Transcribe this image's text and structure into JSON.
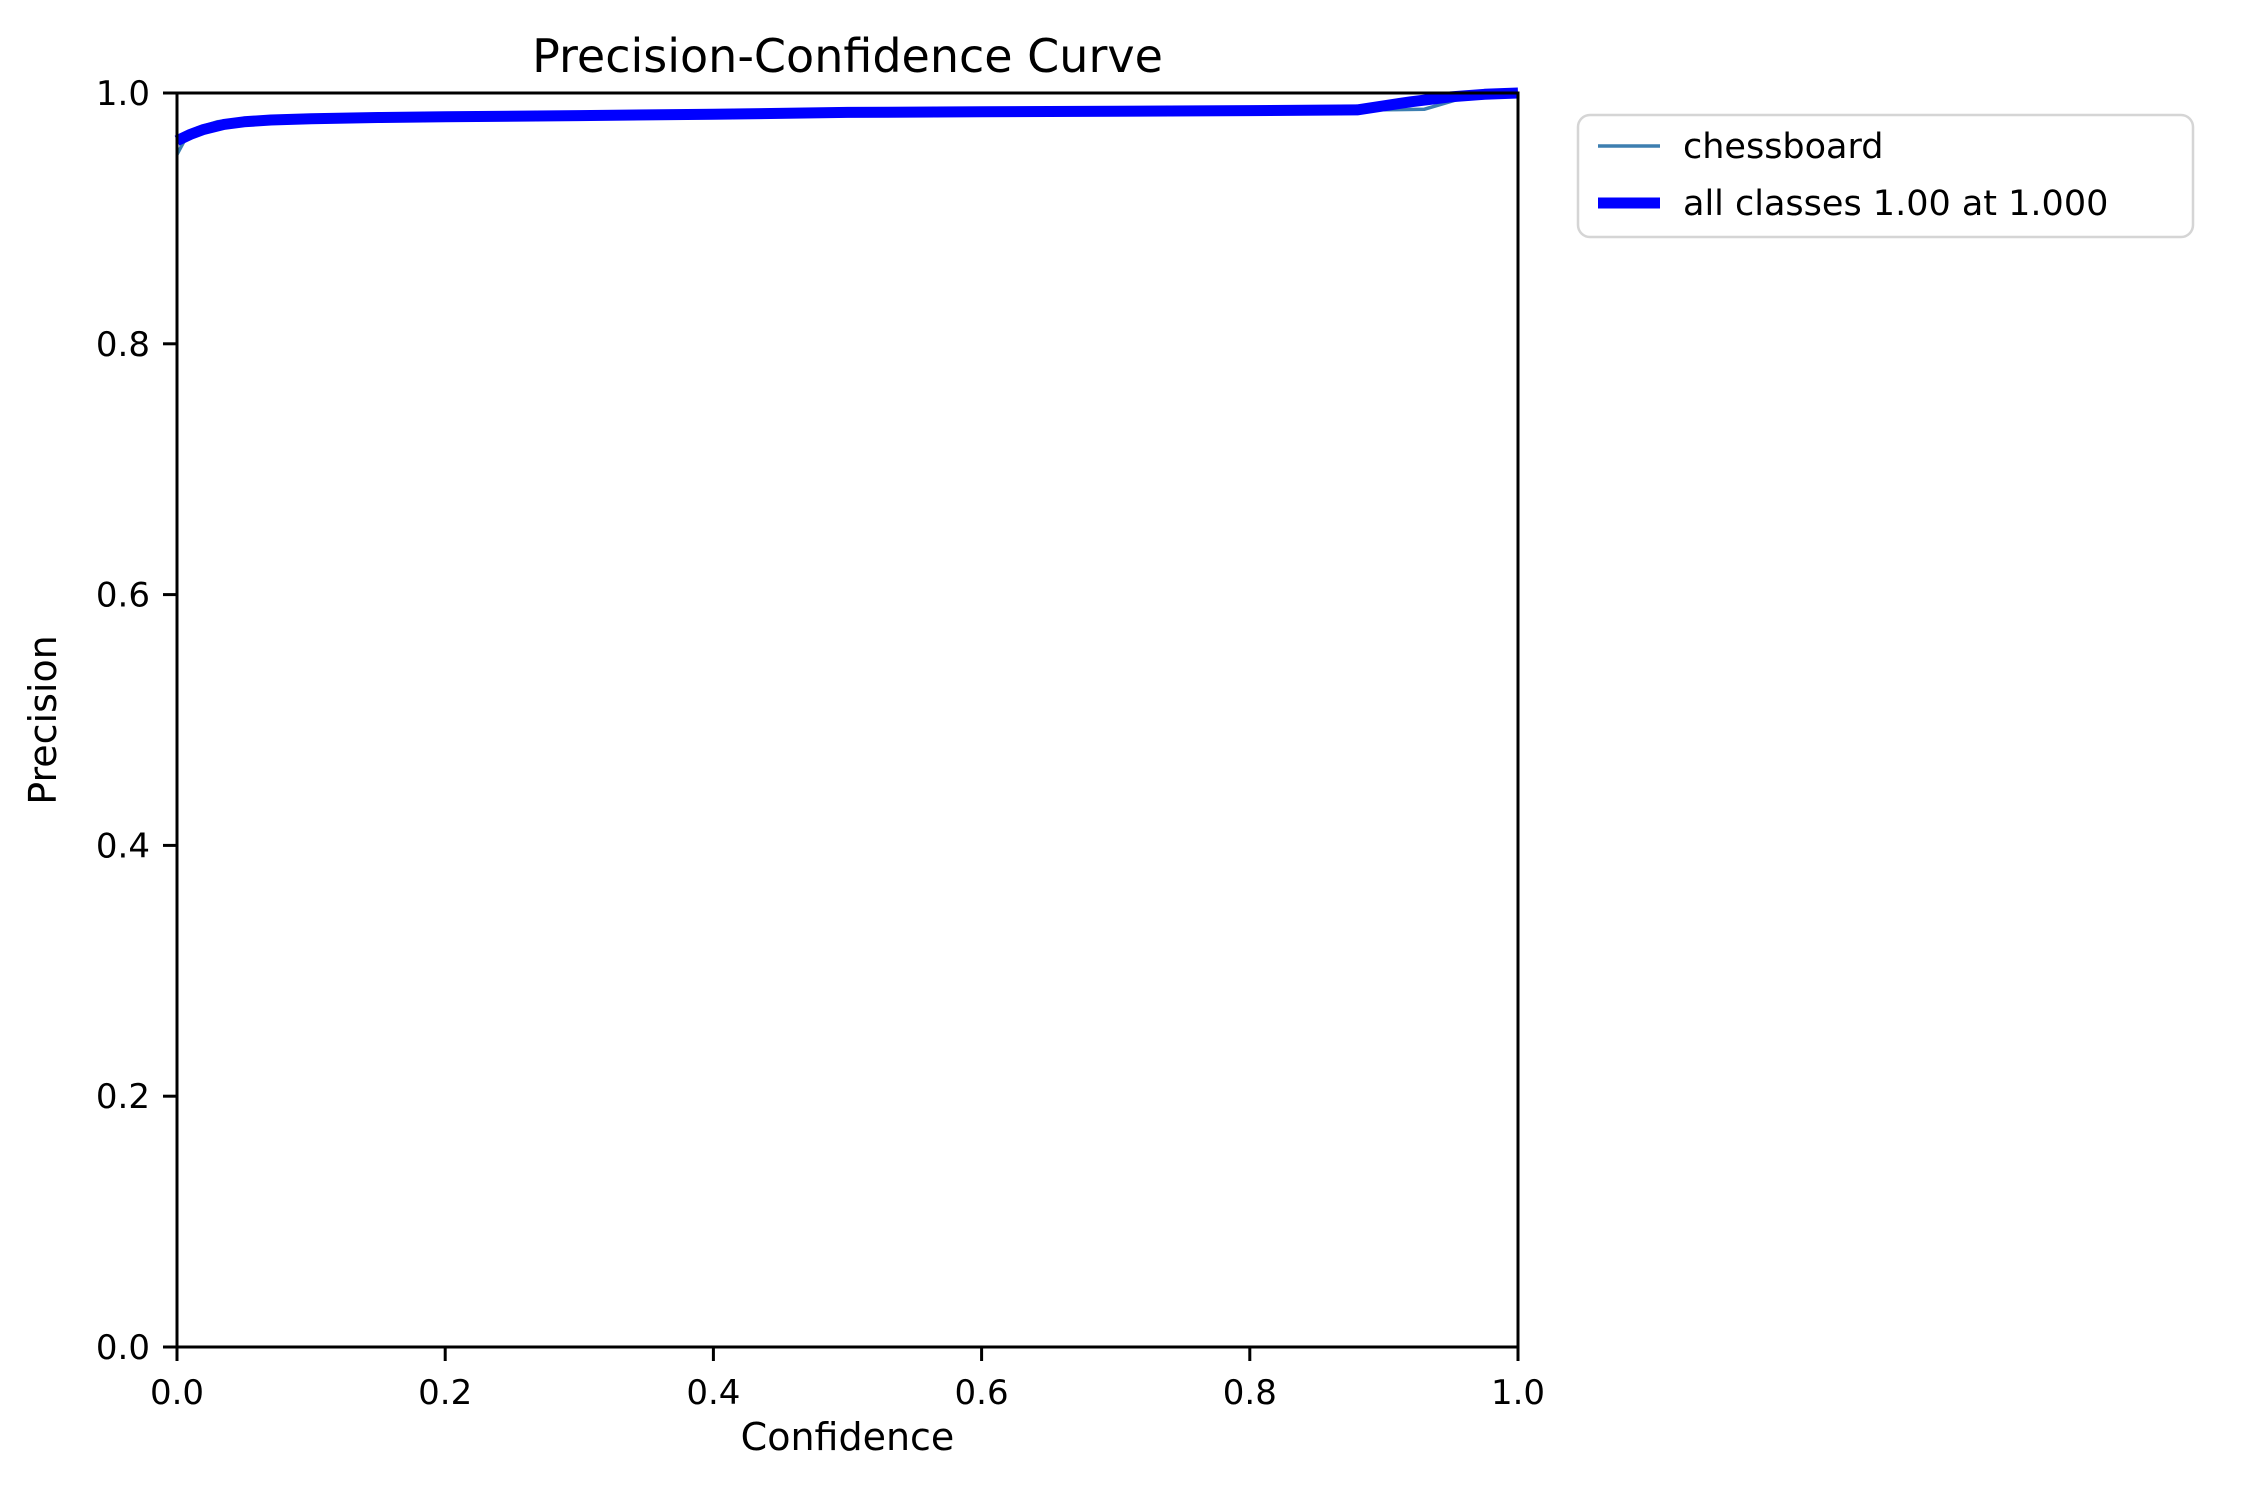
{
  "figure": {
    "background_color": "#ffffff",
    "kind": "matplotlib-style line chart"
  },
  "chart_data": {
    "type": "line",
    "title": "Precision-Confidence Curve",
    "xlabel": "Confidence",
    "ylabel": "Precision",
    "xlim": [
      0.0,
      1.0
    ],
    "ylim": [
      0.0,
      1.0
    ],
    "grid": false,
    "xtick_labels": [
      "0.0",
      "0.2",
      "0.4",
      "0.6",
      "0.8",
      "1.0"
    ],
    "ytick_labels": [
      "0.0",
      "0.2",
      "0.4",
      "0.6",
      "0.8",
      "1.0"
    ],
    "legend_position": "outside upper right",
    "series": [
      {
        "name": "chessboard",
        "color": "#3d7fb0",
        "linewidth": 3.5,
        "x": [
          0.0,
          0.005,
          0.015,
          0.03,
          0.05,
          0.07,
          0.1,
          0.15,
          0.2,
          0.3,
          0.4,
          0.5,
          0.6,
          0.7,
          0.8,
          0.9,
          0.93,
          0.96,
          0.985,
          1.0
        ],
        "y": [
          0.951,
          0.961,
          0.972,
          0.977,
          0.979,
          0.9795,
          0.9803,
          0.9812,
          0.9817,
          0.9827,
          0.9837,
          0.9849,
          0.9854,
          0.9859,
          0.9863,
          0.9866,
          0.987,
          0.9965,
          0.9992,
          1.0
        ]
      },
      {
        "name": "all classes 1.00 at 1.000",
        "color": "#0000ff",
        "linewidth": 11,
        "x": [
          0.0,
          0.01,
          0.02,
          0.035,
          0.05,
          0.07,
          0.1,
          0.15,
          0.2,
          0.3,
          0.4,
          0.5,
          0.6,
          0.7,
          0.8,
          0.88,
          0.92,
          0.95,
          0.975,
          1.0
        ],
        "y": [
          0.962,
          0.967,
          0.971,
          0.975,
          0.977,
          0.9785,
          0.9795,
          0.9805,
          0.981,
          0.982,
          0.983,
          0.9845,
          0.985,
          0.9855,
          0.986,
          0.9865,
          0.993,
          0.997,
          0.999,
          1.0
        ]
      }
    ]
  }
}
